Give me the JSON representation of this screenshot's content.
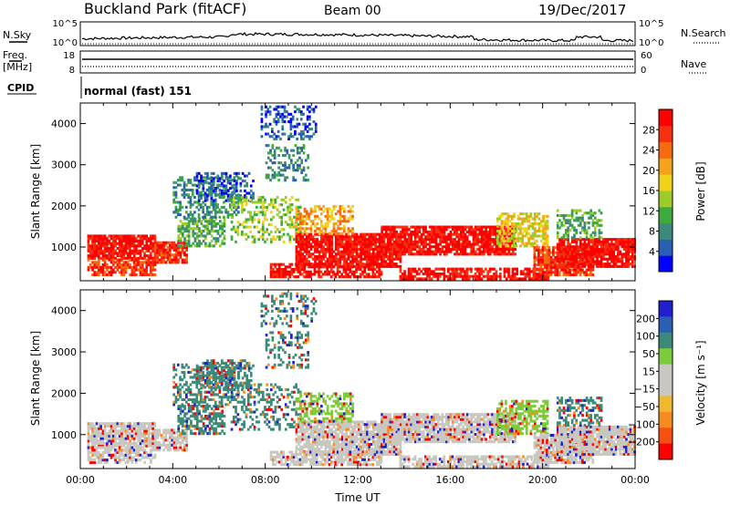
{
  "header": {
    "station": "Buckland Park (fitACF)",
    "beam": "Beam 00",
    "date": "19/Dec/2017"
  },
  "params": {
    "nsky_label": "N.Sky",
    "nsky_ticks": [
      "10^5",
      "10^0"
    ],
    "nsearch_label": "N.Search",
    "nsearch_ticks": [
      "10^5",
      "10^0"
    ],
    "freq_label_1": "Freq.",
    "freq_label_2": "[MHz]",
    "freq_ticks": [
      "18",
      "8"
    ],
    "nave_label": "Nave",
    "nave_ticks": [
      "60",
      "0"
    ],
    "cpid_label": "CPID",
    "cpid_value": "normal (fast) 151"
  },
  "colors": {
    "power_scale": [
      "#0000ff",
      "#2a5fb4",
      "#3c8a7a",
      "#3caa3c",
      "#9ccc2a",
      "#f0d21c",
      "#f7a21c",
      "#f86a10",
      "#f83010",
      "#ff0000"
    ],
    "velocity_scale": [
      "#2020d0",
      "#2a5fb4",
      "#3c8a7a",
      "#7ccc3a",
      "#c8c8c0",
      "#c8c8c0",
      "#f0b830",
      "#f88a20",
      "#f85010",
      "#ff0000"
    ]
  },
  "chart_data": [
    {
      "type": "heatmap",
      "panel": "power",
      "ylabel": "Slant Range [km]",
      "yticks": [
        "1000",
        "2000",
        "3000",
        "4000"
      ],
      "ylim": [
        180,
        4500
      ],
      "xticks": [
        "00:00",
        "04:00",
        "08:00",
        "12:00",
        "16:00",
        "20:00",
        "00:00"
      ],
      "xlim_hours": [
        0,
        24
      ],
      "colorbar_label": "Power [dB]",
      "colorbar_ticks": [
        "4",
        "8",
        "12",
        "16",
        "20",
        "24",
        "28"
      ],
      "colorbar_range": [
        0,
        30
      ]
    },
    {
      "type": "heatmap",
      "panel": "velocity",
      "ylabel": "Slant Range [km]",
      "yticks": [
        "1000",
        "2000",
        "3000",
        "4000"
      ],
      "ylim": [
        180,
        4500
      ],
      "xticks": [
        "00:00",
        "04:00",
        "08:00",
        "12:00",
        "16:00",
        "20:00",
        "00:00"
      ],
      "xlim_hours": [
        0,
        24
      ],
      "xlabel": "Time UT",
      "colorbar_label": "Velocity [m s⁻¹]",
      "colorbar_ticks": [
        "200",
        "100",
        "50",
        "15",
        "−15",
        "−50",
        "−100",
        "−200"
      ],
      "colorbar_range": [
        -250,
        250
      ]
    }
  ]
}
